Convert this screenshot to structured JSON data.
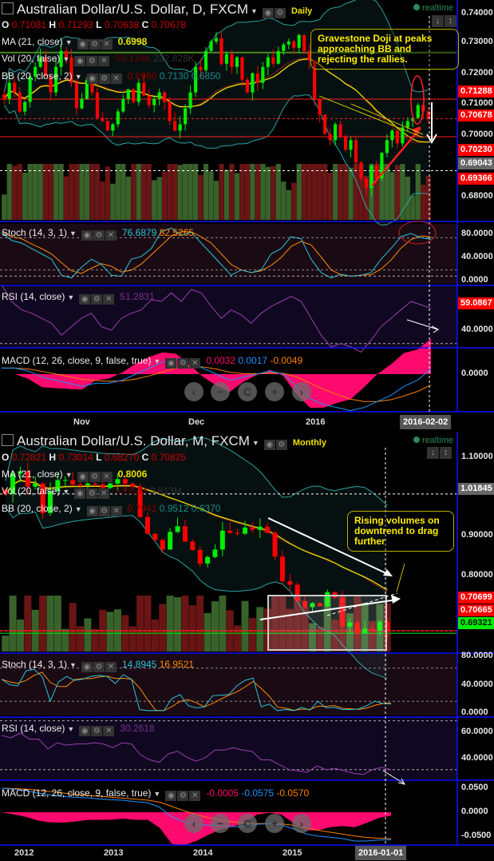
{
  "colors": {
    "up": "#00ee00",
    "down": "#ff0000",
    "ma": "#e8e000",
    "bb": "#2aa3a3",
    "stochK": "#29c5d8",
    "stochD": "#ff8c00",
    "rsi": "#9a3fb0",
    "macd": "#1e90ff",
    "signal": "#ff7f00",
    "hist": "#ff0a6e",
    "axis": "#0000ff",
    "annotation": "#ffee00"
  },
  "icons": [
    "eye-icon",
    "gear-icon",
    "close-icon",
    "arrow-up-icon",
    "arrow-down-icon",
    "scale-icon",
    "chevron-left-icon",
    "minus-icon",
    "reset-icon",
    "plus-icon",
    "chevron-right-icon"
  ],
  "nav": {
    "prev": "‹",
    "zoom_out": "−",
    "reset": "C",
    "zoom_in": "+",
    "next": "›"
  },
  "daily": {
    "title": "Australian Dollar/U.S. Dollar, D, FXCM",
    "timeframe": "Daily",
    "realtime": "realtime",
    "ohlc": {
      "o_label": "O",
      "o": "0.71081",
      "h_label": "H",
      "h": "0.71293",
      "l_label": "L",
      "l": "0.70638",
      "c_label": "C",
      "c": "0.70678"
    },
    "ma": {
      "label": "MA (21, close)",
      "value": "0.6998"
    },
    "vol": {
      "label": "Vol (20, false)",
      "v1": "59.134K",
      "v2": "232.828K"
    },
    "bb": {
      "label": "BB (20, close, 2)",
      "v1": "0.6990",
      "v2": "0.7130",
      "v3": "0.6850"
    },
    "price_axis": [
      "0.74000",
      "0.73000",
      "0.72000",
      "0.71000",
      "0.70000",
      "0.68000"
    ],
    "price_tags": [
      {
        "v": "0.71288",
        "style": "red"
      },
      {
        "v": "0.70678",
        "style": "red"
      },
      {
        "v": "0.70230",
        "style": "red"
      },
      {
        "v": "0.69043",
        "style": "grey"
      },
      {
        "v": "0.69366",
        "style": "red"
      }
    ],
    "callout": "Gravestone Doji at peaks approaching BB and rejecting the rallies.",
    "stoch": {
      "label": "Stoch (14, 3, 1)",
      "k": "76.6879",
      "d": "82.5265",
      "axis": [
        "80.0000",
        "40.0000",
        "0.0000"
      ]
    },
    "rsi": {
      "label": "RSI (14, close)",
      "value": "51.2831",
      "axis_tag": "59.0867",
      "axis": [
        "40.0000"
      ]
    },
    "macd": {
      "label": "MACD (12, 26, close, 9, false, true)",
      "hist": "0.0032",
      "macd": "0.0017",
      "signal": "-0.0049",
      "axis": [
        "0.0000"
      ]
    },
    "dates": [
      "Nov",
      "Dec",
      "2016"
    ],
    "cursor_date": "2016-02-02"
  },
  "monthly": {
    "title": "Australian Dollar/U.S. Dollar, M, FXCM",
    "timeframe": "Monthly",
    "realtime": "realtime",
    "ohlc": {
      "o_label": "O",
      "o": "0.72821",
      "h_label": "H",
      "h": "0.73014",
      "l_label": "L",
      "l": "0.68270",
      "c_label": "C",
      "c": "0.70825"
    },
    "ma": {
      "label": "MA (21, close)",
      "value": "0.8006"
    },
    "vol": {
      "label": "Vol (20, false)",
      "v1": "5.192M",
      "v2": "3.813M"
    },
    "bb": {
      "label": "BB (20, close, 2)",
      "v1": "0.7941",
      "v2": "0.9512",
      "v3": "0.6370"
    },
    "price_axis": [
      "1.10000",
      "0.90000",
      "0.80000"
    ],
    "price_tags": [
      {
        "v": "1.01845",
        "style": "grey"
      },
      {
        "v": "0.70699",
        "style": "red"
      },
      {
        "v": "0.70665",
        "style": "red"
      },
      {
        "v": "0.69321",
        "style": "green"
      }
    ],
    "callout": "Rising volumes on downtrend to drag further",
    "stoch": {
      "label": "Stoch (14, 3, 1)",
      "k": "14.8945",
      "d": "16.9521",
      "axis": [
        "80.0000",
        "40.0000",
        "0.0000"
      ]
    },
    "rsi": {
      "label": "RSI (14, close)",
      "value": "30.2618",
      "axis": [
        "60.0000",
        "40.0000"
      ]
    },
    "macd": {
      "label": "MACD (12, 26, close, 9, false, true)",
      "hist": "-0.0005",
      "macd": "-0.0575",
      "signal": "-0.0570",
      "axis": [
        "0.0500",
        "0.0000",
        "-0.0500"
      ]
    },
    "dates": [
      "2012",
      "2013",
      "2014",
      "2015"
    ],
    "cursor_date": "2016-01-01"
  },
  "chart_data": [
    {
      "type": "candlestick",
      "name": "daily",
      "ylim": [
        0.675,
        0.744
      ],
      "close": [
        0.713,
        0.718,
        0.715,
        0.709,
        0.712,
        0.72,
        0.723,
        0.726,
        0.72,
        0.715,
        0.723,
        0.728,
        0.726,
        0.718,
        0.71,
        0.713,
        0.719,
        0.715,
        0.707,
        0.706,
        0.703,
        0.705,
        0.709,
        0.713,
        0.716,
        0.712,
        0.718,
        0.714,
        0.711,
        0.713,
        0.715,
        0.712,
        0.706,
        0.703,
        0.705,
        0.71,
        0.715,
        0.723,
        0.722,
        0.728,
        0.731,
        0.732,
        0.724,
        0.727,
        0.723,
        0.726,
        0.719,
        0.715,
        0.721,
        0.718,
        0.723,
        0.726,
        0.724,
        0.728,
        0.73,
        0.731,
        0.729,
        0.733,
        0.728,
        0.725,
        0.713,
        0.708,
        0.702,
        0.7,
        0.705,
        0.701,
        0.697,
        0.7,
        0.693,
        0.688,
        0.685,
        0.692,
        0.688,
        0.696,
        0.7,
        0.703,
        0.699,
        0.704,
        0.706,
        0.707,
        0.711,
        0.709,
        0.7068
      ],
      "stoch_k": [
        90,
        75,
        70,
        60,
        50,
        40,
        10,
        5,
        25,
        40,
        30,
        10,
        8,
        40,
        45,
        60,
        92,
        98,
        85,
        90,
        70,
        50,
        30,
        10,
        20,
        15,
        20,
        50,
        60,
        82,
        78,
        40,
        15,
        5,
        12,
        8,
        10,
        15,
        40,
        60,
        82,
        88,
        80,
        77
      ],
      "rsi": [
        65,
        55,
        50,
        48,
        45,
        42,
        35,
        40,
        45,
        48,
        40,
        38,
        45,
        48,
        50,
        56,
        55,
        60,
        55,
        62,
        60,
        52,
        45,
        50,
        47,
        42,
        48,
        52,
        55,
        58,
        55,
        45,
        35,
        28,
        30,
        28,
        25,
        32,
        40,
        45,
        50,
        55,
        53,
        51
      ],
      "macd": [
        0.002,
        0.002,
        0.001,
        -0.001,
        -0.002,
        -0.003,
        -0.004,
        -0.003,
        -0.003,
        -0.002,
        0.0,
        0.002,
        0.004,
        0.005,
        0.004,
        0.002,
        0.0,
        -0.002,
        -0.001,
        0.0,
        0.001,
        0.0,
        -0.004,
        -0.008,
        -0.01,
        -0.011,
        -0.012,
        -0.011,
        -0.009,
        -0.007,
        -0.004,
        -0.002,
        0.0017
      ],
      "levels": {
        "resistance": 0.71288,
        "last": 0.70678,
        "support": 0.7023,
        "crosshair": 0.69043
      }
    },
    {
      "type": "candlestick",
      "name": "monthly",
      "ylim": [
        0.66,
        1.16
      ],
      "close": [
        1.018,
        1.065,
        1.07,
        1.035,
        1.042,
        0.975,
        1.025,
        1.05,
        1.05,
        1.04,
        1.038,
        1.042,
        1.04,
        1.032,
        1.042,
        1.052,
        1.042,
        1.035,
        0.966,
        0.928,
        0.914,
        0.892,
        0.932,
        0.945,
        0.91,
        0.891,
        0.86,
        0.875,
        0.892,
        0.935,
        0.93,
        0.928,
        0.942,
        0.937,
        0.944,
        0.93,
        0.876,
        0.82,
        0.812,
        0.775,
        0.761,
        0.77,
        0.763,
        0.795,
        0.783,
        0.717,
        0.726,
        0.701,
        0.712,
        0.707,
        0.728,
        0.708
      ],
      "stoch_k": [
        60,
        50,
        48,
        75,
        78,
        65,
        20,
        55,
        65,
        58,
        60,
        65,
        67,
        65,
        52,
        68,
        60,
        5,
        3,
        3,
        3,
        25,
        32,
        12,
        8,
        10,
        30,
        31,
        32,
        48,
        58,
        62,
        10,
        15,
        3,
        5,
        3,
        9,
        4,
        20,
        8,
        9,
        5,
        5,
        6,
        12,
        20,
        16,
        15
      ],
      "rsi": [
        58,
        56,
        60,
        55,
        55,
        47,
        52,
        50,
        51,
        51,
        52,
        51,
        48,
        52,
        51,
        42,
        38,
        36,
        43,
        45,
        40,
        37,
        40,
        46,
        46,
        48,
        46,
        45,
        38,
        38,
        34,
        30,
        29,
        28,
        33,
        30,
        31,
        29,
        27,
        26,
        30,
        32,
        30
      ],
      "macd": [
        0.05,
        0.048,
        0.045,
        0.04,
        0.036,
        0.033,
        0.031,
        0.03,
        0.028,
        0.026,
        0.025,
        0.022,
        0.02,
        0.01,
        -0.01,
        -0.02,
        -0.025,
        -0.027,
        -0.028,
        -0.03,
        -0.03,
        -0.025,
        -0.024,
        -0.026,
        -0.035,
        -0.045,
        -0.05,
        -0.052,
        -0.055,
        -0.06,
        -0.06,
        -0.058,
        -0.0575
      ],
      "levels": {
        "crosshair": 1.01845,
        "last": 0.70665,
        "support": 0.69321
      }
    }
  ]
}
